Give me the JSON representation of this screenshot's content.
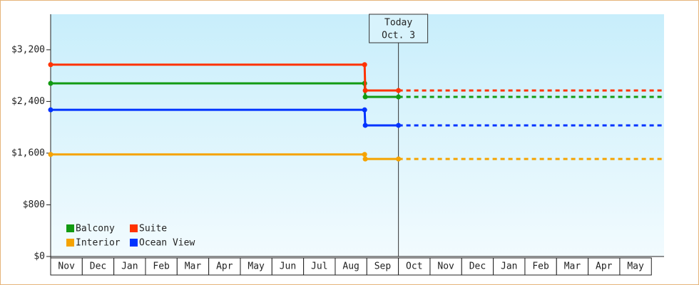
{
  "chart_data": {
    "type": "line",
    "categories": [
      "Nov",
      "Dec",
      "Jan",
      "Feb",
      "Mar",
      "Apr",
      "May",
      "Jun",
      "Jul",
      "Aug",
      "Sep",
      "Oct",
      "Nov",
      "Dec",
      "Jan",
      "Feb",
      "Mar",
      "Apr",
      "May"
    ],
    "x": [
      0,
      9.93,
      9.95,
      11
    ],
    "xlim": [
      0,
      19.4
    ],
    "series": [
      {
        "name": "Balcony",
        "color": "#129a12",
        "values": [
          2680,
          2680,
          2470,
          2470
        ]
      },
      {
        "name": "Suite",
        "color": "#ff3300",
        "values": [
          2970,
          2970,
          2570,
          2570
        ]
      },
      {
        "name": "Interior",
        "color": "#f5a300",
        "values": [
          1580,
          1580,
          1510,
          1510
        ]
      },
      {
        "name": "Ocean View",
        "color": "#0033ff",
        "values": [
          2270,
          2270,
          2030,
          2030
        ]
      }
    ],
    "ylim": [
      0,
      3750
    ],
    "yticks": [
      {
        "value": 0,
        "label": "$0"
      },
      {
        "value": 800,
        "label": "$800"
      },
      {
        "value": 1600,
        "label": "$1,600"
      },
      {
        "value": 2400,
        "label": "$2,400"
      },
      {
        "value": 3200,
        "label": "$3,200"
      }
    ],
    "annotation": {
      "lines": [
        "Today",
        "Oct. 3"
      ],
      "x": 11
    },
    "projection": "dashed"
  }
}
